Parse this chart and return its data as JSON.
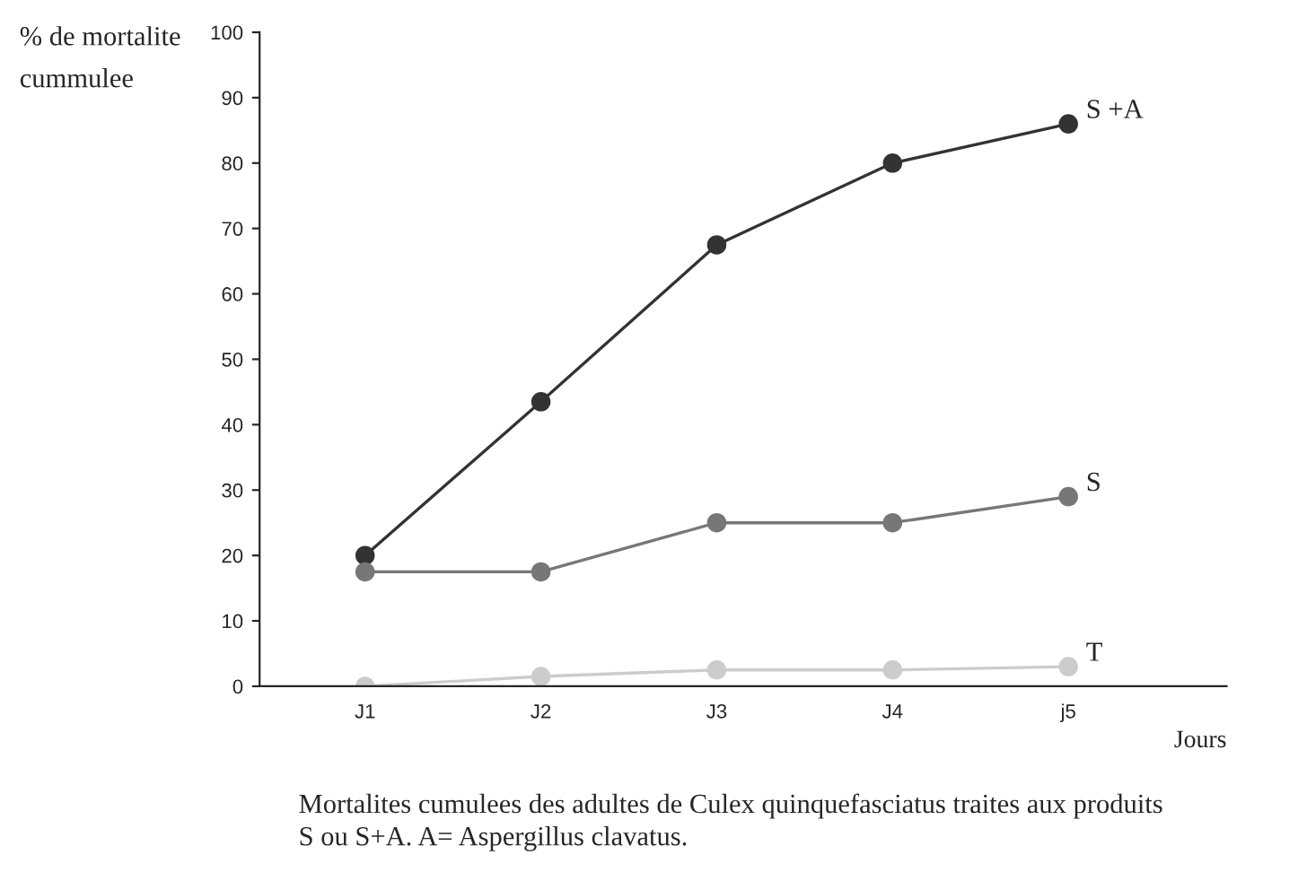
{
  "chart_data": {
    "type": "line",
    "ylabel": "% de mortalite\ncummulee",
    "xlabel": "Jours",
    "categories": [
      "J1",
      "J2",
      "J3",
      "J4",
      "j5"
    ],
    "series": [
      {
        "name": "S +A",
        "color": "#333333",
        "values": [
          20,
          43.5,
          67.5,
          80,
          86
        ]
      },
      {
        "name": "S",
        "color": "#777777",
        "values": [
          17.5,
          17.5,
          25,
          25,
          29
        ]
      },
      {
        "name": "T",
        "color": "#cccccc",
        "values": [
          0,
          1.5,
          2.5,
          2.5,
          3
        ]
      }
    ],
    "ylim": [
      0,
      100
    ],
    "yticks": [
      0,
      10,
      20,
      30,
      40,
      50,
      60,
      70,
      80,
      90,
      100
    ],
    "marker": "circle",
    "line_style": "solid",
    "grid": false,
    "legend": false,
    "annotations": [
      "Mortalites cumulees des adultes de Culex quinquefasciatus traites aux produits\nS ou S+A. A= Aspergillus clavatus."
    ]
  }
}
